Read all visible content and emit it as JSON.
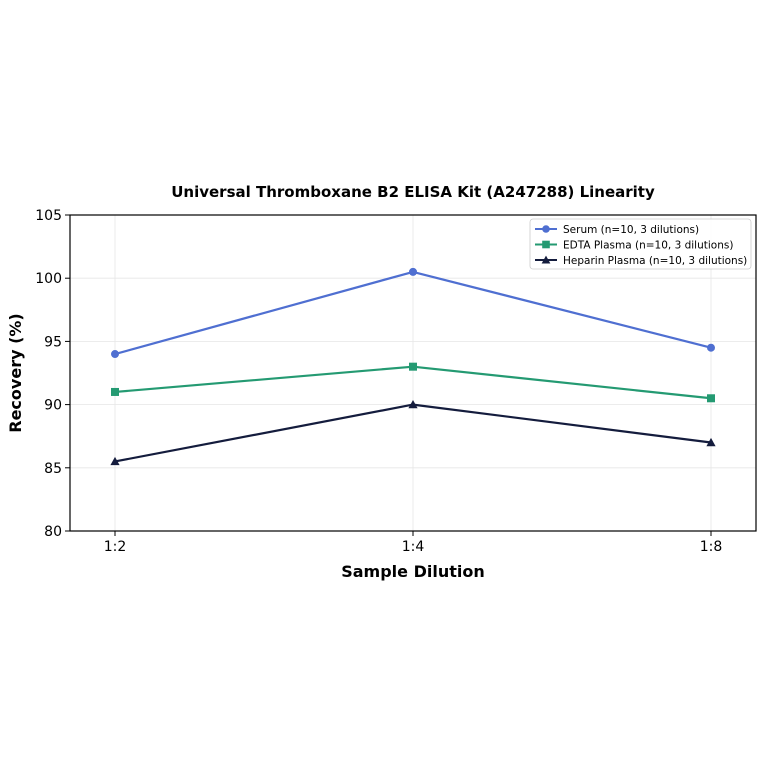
{
  "chart_data": {
    "type": "line",
    "title": "Universal Thromboxane B2 ELISA Kit (A247288) Linearity",
    "xlabel": "Sample Dilution",
    "ylabel": "Recovery (%)",
    "categories": [
      "1:2",
      "1:4",
      "1:8"
    ],
    "ylim": [
      80,
      105
    ],
    "yticks": [
      "80",
      "85",
      "90",
      "95",
      "100",
      "105"
    ],
    "grid": true,
    "legend_position": "top-right",
    "series": [
      {
        "name": "Serum (n=10, 3 dilutions)",
        "values": [
          94.0,
          100.5,
          94.5
        ],
        "color": "#4f6fd1",
        "marker": "circle"
      },
      {
        "name": "EDTA Plasma (n=10, 3 dilutions)",
        "values": [
          91.0,
          93.0,
          90.5
        ],
        "color": "#249a72",
        "marker": "square"
      },
      {
        "name": "Heparin Plasma (n=10, 3 dilutions)",
        "values": [
          85.5,
          90.0,
          87.0
        ],
        "color": "#141c3d",
        "marker": "triangle"
      }
    ]
  }
}
